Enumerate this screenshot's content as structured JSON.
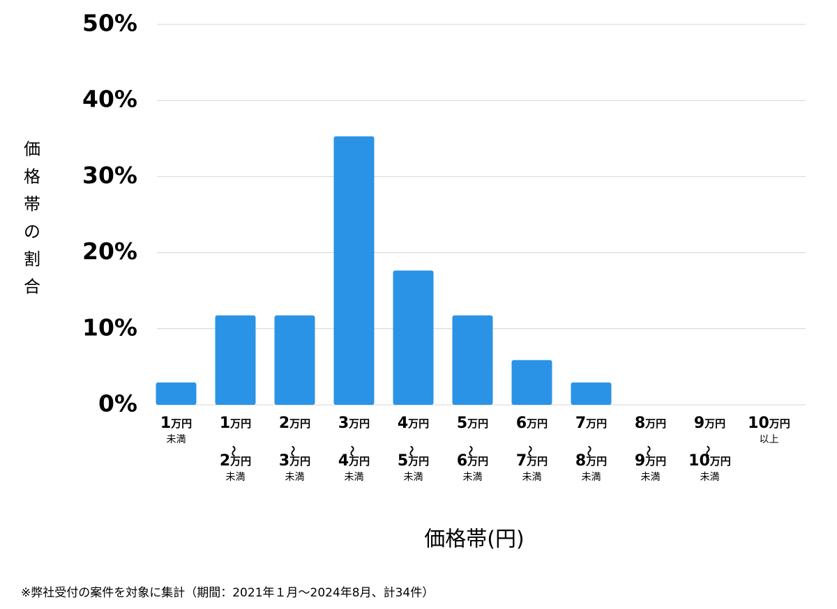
{
  "chart_data": {
    "type": "bar",
    "y_label": "価格帯の割合",
    "x_label": "価格帯(円)",
    "footnote": "※弊社受付の案件を対象に集計（期間：2021年１月～2024年8月、計34件）",
    "categories": [
      "1万円\n未満",
      "1万円\n〜\n2万円\n未満",
      "2万円\n〜\n3万円\n未満",
      "3万円\n〜\n4万円\n未満",
      "4万円\n〜\n5万円\n未満",
      "5万円\n〜\n6万円\n未満",
      "6万円\n〜\n7万円\n未満",
      "7万円\n〜\n8万円\n未満",
      "8万円\n〜\n9万円\n未満",
      "9万円\n〜\n10万円\n未満",
      "10万円\n以上"
    ],
    "values": [
      2.94,
      11.76,
      11.76,
      35.29,
      17.65,
      11.76,
      5.88,
      2.94,
      0,
      0,
      0
    ],
    "color": "#2b93e6",
    "ylim": [
      0,
      50
    ],
    "yticks": [
      {
        "value": 0,
        "label": "0%"
      },
      {
        "value": 10,
        "label": "10%"
      },
      {
        "value": 20,
        "label": "20%"
      },
      {
        "value": 30,
        "label": "30%"
      },
      {
        "value": 40,
        "label": "40%"
      },
      {
        "value": 50,
        "label": "50%"
      }
    ],
    "grid": true
  }
}
